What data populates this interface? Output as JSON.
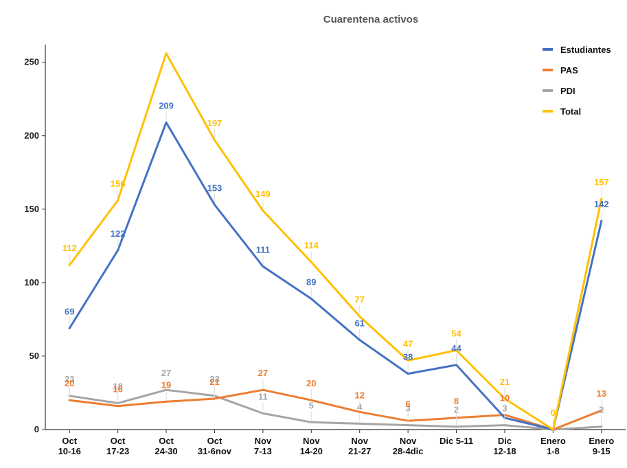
{
  "chart_data": {
    "type": "line",
    "title": "Cuarentena activos",
    "xlabel": "",
    "ylabel": "",
    "ylim": [
      0,
      262
    ],
    "yticks": [
      0,
      50,
      100,
      150,
      200,
      250
    ],
    "ytick_labels": [
      "0",
      "50",
      "100",
      "150",
      "200",
      "250"
    ],
    "grid": false,
    "legend_position": "top-right",
    "categories": [
      [
        "Oct",
        "10-16"
      ],
      [
        "Oct",
        "17-23"
      ],
      [
        "Oct",
        "24-30"
      ],
      [
        "Oct",
        "31-6nov"
      ],
      [
        "Nov",
        "7-13"
      ],
      [
        "Nov",
        "14-20"
      ],
      [
        "Nov",
        "21-27"
      ],
      [
        "Nov",
        "28-4dic"
      ],
      [
        "Dic 5-11"
      ],
      [
        "Dic",
        "12-18"
      ],
      [
        "Enero",
        "1-8"
      ],
      [
        "Enero",
        "9-15"
      ]
    ],
    "series": [
      {
        "name": "Estudiantes",
        "color": "#4472C4",
        "values": [
          69,
          122,
          209,
          153,
          111,
          89,
          61,
          38,
          44,
          8,
          0,
          142
        ],
        "labels": [
          "69",
          "122",
          "209",
          "153",
          "111",
          "89",
          "61",
          "38",
          "44",
          "",
          "",
          "142"
        ]
      },
      {
        "name": "PAS",
        "color": "#ED7D31",
        "values": [
          20,
          16,
          19,
          21,
          27,
          20,
          12,
          6,
          8,
          10,
          0,
          13
        ],
        "labels": [
          "20",
          "16",
          "19",
          "21",
          "27",
          "20",
          "12",
          "6",
          "8",
          "10",
          "",
          "13"
        ]
      },
      {
        "name": "PDI",
        "color": "#A5A5A5",
        "values": [
          23,
          18,
          27,
          23,
          11,
          5,
          4,
          3,
          2,
          3,
          0,
          2
        ],
        "labels": [
          "23",
          "18",
          "27",
          "23",
          "11",
          "5",
          "4",
          "3",
          "2",
          "3",
          "",
          "2"
        ]
      },
      {
        "name": "Total",
        "color": "#FFC000",
        "values": [
          112,
          156,
          256,
          197,
          149,
          114,
          77,
          47,
          54,
          21,
          0,
          157
        ],
        "labels": [
          "112",
          "156",
          "",
          "197",
          "149",
          "114",
          "77",
          "47",
          "54",
          "21",
          "0",
          "157"
        ]
      }
    ]
  }
}
